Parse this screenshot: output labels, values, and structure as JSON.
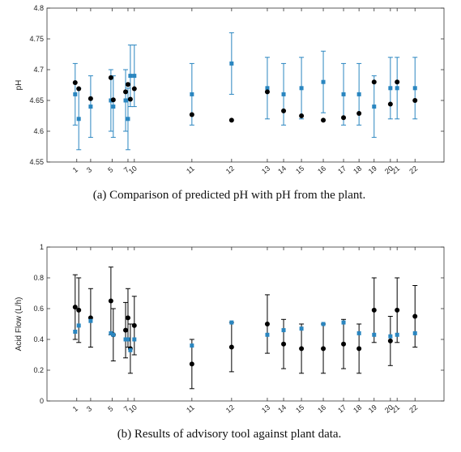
{
  "chart_data": [
    {
      "type": "scatter",
      "caption": "(a) Comparison of predicted pH with pH from the plant.",
      "ylabel": "pH",
      "x": [
        7.1,
        8.0,
        11.0,
        16.1,
        16.7,
        19.8,
        20.4,
        21.0,
        22.0,
        36.5,
        46.5,
        55.5,
        59.6,
        64.1,
        69.6,
        74.7,
        78.6,
        82.4,
        86.5,
        88.2,
        92.7
      ],
      "series": [
        {
          "color": "#2a86c0",
          "marker": "square",
          "values": [
            4.66,
            4.62,
            4.64,
            4.65,
            4.64,
            4.65,
            4.62,
            4.69,
            4.69,
            4.66,
            4.71,
            4.67,
            4.66,
            4.67,
            4.68,
            4.66,
            4.66,
            4.64,
            4.67,
            4.67,
            4.67
          ],
          "errors": [
            0.05,
            0.05,
            0.05,
            0.05,
            0.05,
            0.05,
            0.05,
            0.05,
            0.05,
            0.05,
            0.05,
            0.05,
            0.05,
            0.05,
            0.05,
            0.05,
            0.05,
            0.05,
            0.05,
            0.05,
            0.05
          ]
        },
        {
          "color": "#000000",
          "marker": "circle",
          "values": [
            4.679,
            4.669,
            4.653,
            4.687,
            4.651,
            4.664,
            4.676,
            4.652,
            4.669,
            4.627,
            4.618,
            4.664,
            4.633,
            4.625,
            4.618,
            4.622,
            4.629,
            4.68,
            4.644,
            4.68,
            4.65
          ]
        }
      ],
      "xlim": [
        0,
        100
      ],
      "xticks": [
        {
          "value": 7.5,
          "label": "1"
        },
        {
          "value": 11.0,
          "label": "3"
        },
        {
          "value": 16.4,
          "label": "5"
        },
        {
          "value": 20.4,
          "label": "7"
        },
        {
          "value": 22.0,
          "label": "10"
        },
        {
          "value": 36.5,
          "label": "11"
        },
        {
          "value": 46.5,
          "label": "12"
        },
        {
          "value": 55.5,
          "label": "13"
        },
        {
          "value": 59.6,
          "label": "14"
        },
        {
          "value": 64.1,
          "label": "15"
        },
        {
          "value": 69.6,
          "label": "16"
        },
        {
          "value": 74.7,
          "label": "17"
        },
        {
          "value": 78.6,
          "label": "18"
        },
        {
          "value": 82.4,
          "label": "19"
        },
        {
          "value": 86.5,
          "label": "20"
        },
        {
          "value": 88.2,
          "label": "21"
        },
        {
          "value": 92.7,
          "label": "22"
        }
      ],
      "ylim": [
        4.55,
        4.8
      ],
      "yticks": [
        4.55,
        4.6,
        4.65,
        4.7,
        4.75,
        4.8
      ]
    },
    {
      "type": "scatter",
      "caption": "(b) Results of advisory tool against plant data.",
      "ylabel": "Acid Flow (L/h)",
      "x": [
        7.1,
        8.0,
        11.0,
        16.1,
        16.7,
        19.8,
        20.4,
        21.0,
        22.0,
        36.5,
        46.5,
        55.5,
        59.6,
        64.1,
        69.6,
        74.7,
        78.6,
        82.4,
        86.5,
        88.2,
        92.7
      ],
      "series": [
        {
          "color": "#000000",
          "marker": "circle",
          "values": [
            0.61,
            0.59,
            0.54,
            0.65,
            0.43,
            0.46,
            0.54,
            0.34,
            0.49,
            0.24,
            0.35,
            0.5,
            0.37,
            0.34,
            0.34,
            0.37,
            0.34,
            0.59,
            0.39,
            0.59,
            0.55
          ],
          "errors": [
            0.21,
            0.21,
            0.19,
            0.22,
            0.17,
            0.18,
            0.19,
            0.16,
            0.19,
            0.16,
            0.16,
            0.19,
            0.16,
            0.16,
            0.16,
            0.16,
            0.16,
            0.21,
            0.16,
            0.21,
            0.2
          ]
        },
        {
          "color": "#2a86c0",
          "marker": "square",
          "values": [
            0.45,
            0.49,
            0.52,
            0.44,
            0.43,
            0.4,
            0.4,
            0.33,
            0.4,
            0.36,
            0.51,
            0.43,
            0.46,
            0.47,
            0.5,
            0.51,
            0.44,
            0.43,
            0.42,
            0.43,
            0.44
          ]
        }
      ],
      "xlim": [
        0,
        100
      ],
      "xticks": [
        {
          "value": 7.5,
          "label": "1"
        },
        {
          "value": 11.0,
          "label": "3"
        },
        {
          "value": 16.4,
          "label": "5"
        },
        {
          "value": 20.4,
          "label": "7"
        },
        {
          "value": 22.0,
          "label": "10"
        },
        {
          "value": 36.5,
          "label": "11"
        },
        {
          "value": 46.5,
          "label": "12"
        },
        {
          "value": 55.5,
          "label": "13"
        },
        {
          "value": 59.6,
          "label": "14"
        },
        {
          "value": 64.1,
          "label": "15"
        },
        {
          "value": 69.6,
          "label": "16"
        },
        {
          "value": 74.7,
          "label": "17"
        },
        {
          "value": 78.6,
          "label": "18"
        },
        {
          "value": 82.4,
          "label": "19"
        },
        {
          "value": 86.5,
          "label": "20"
        },
        {
          "value": 88.2,
          "label": "21"
        },
        {
          "value": 92.7,
          "label": "22"
        }
      ],
      "ylim": [
        0,
        1
      ],
      "yticks": [
        0,
        0.2,
        0.4,
        0.6,
        0.8,
        1
      ]
    }
  ]
}
